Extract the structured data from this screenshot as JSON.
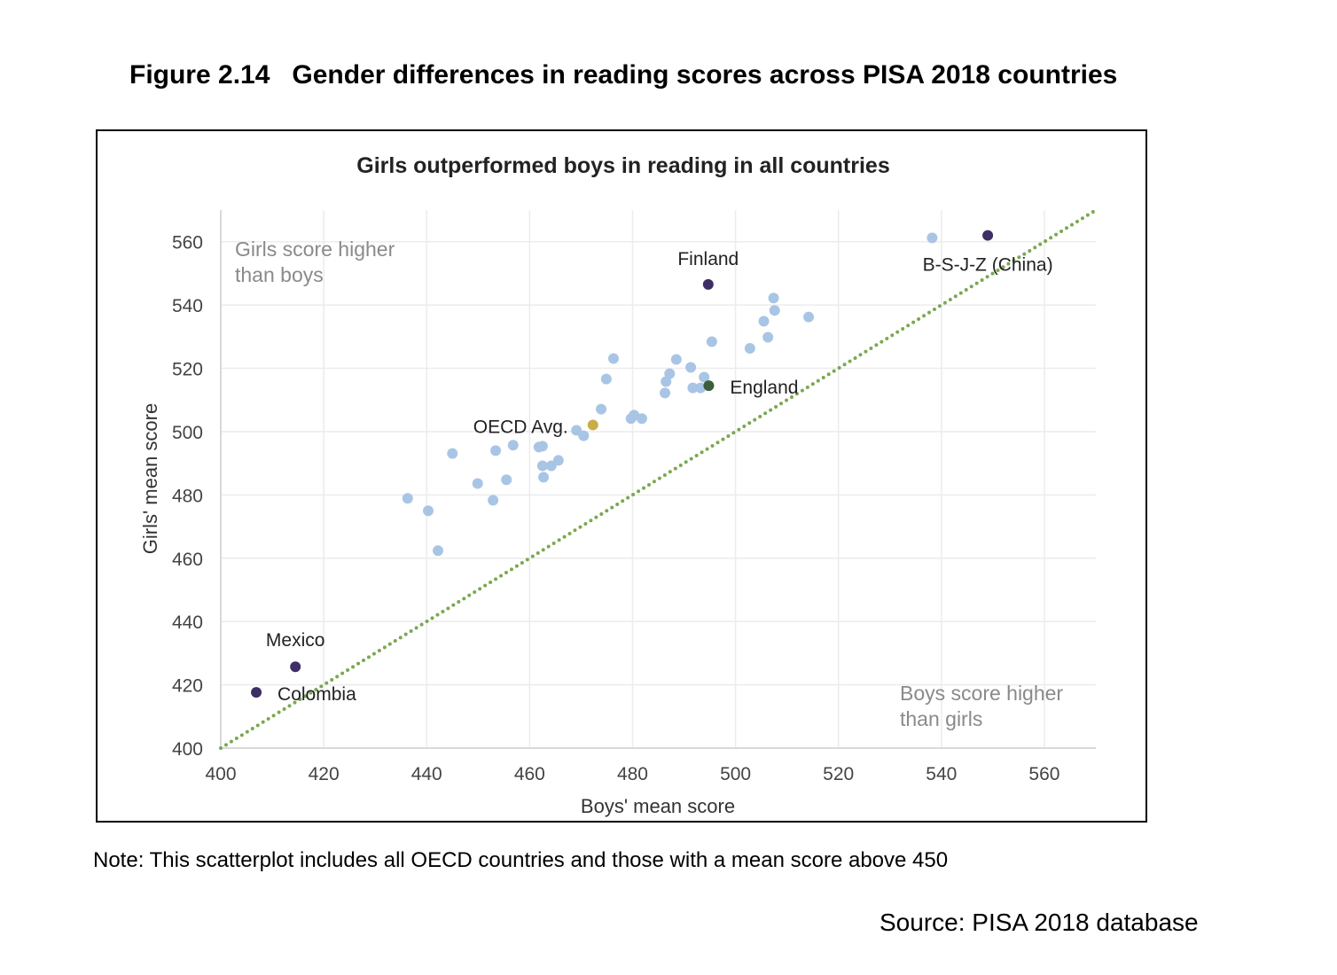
{
  "figure_title": "Figure 2.14   Gender differences in reading scores across PISA 2018 countries",
  "note": "Note: This scatterplot includes all OECD countries and those with a mean score above 450",
  "source": "Source: PISA 2018 database",
  "chart_data": {
    "type": "scatter",
    "title": "Girls outperformed boys in reading in all countries",
    "xlabel": "Boys' mean score",
    "ylabel": "Girls' mean score",
    "xlim": [
      400,
      570
    ],
    "ylim": [
      400,
      570
    ],
    "xticks": [
      400,
      420,
      440,
      460,
      480,
      500,
      520,
      540,
      560
    ],
    "yticks": [
      400,
      420,
      440,
      460,
      480,
      500,
      520,
      540,
      560
    ],
    "grid": true,
    "annotations": {
      "upper_left": [
        "Girls score higher",
        "than boys"
      ],
      "lower_right": [
        "Boys score higher",
        "than girls"
      ]
    },
    "reference_line": {
      "type": "y = x",
      "style": "dotted",
      "color": "#7aa850"
    },
    "colors": {
      "other": "#a9c5e5",
      "highlight": "#3d2f66",
      "england": "#3b5e3b",
      "oecd": "#c8ad48"
    },
    "points": [
      {
        "x": 436.3,
        "y": 478.9
      },
      {
        "x": 440.3,
        "y": 475.0
      },
      {
        "x": 442.2,
        "y": 462.4
      },
      {
        "x": 445.0,
        "y": 493.1
      },
      {
        "x": 449.9,
        "y": 483.6
      },
      {
        "x": 452.9,
        "y": 478.3
      },
      {
        "x": 453.4,
        "y": 494.0
      },
      {
        "x": 455.5,
        "y": 484.8
      },
      {
        "x": 456.8,
        "y": 495.7
      },
      {
        "x": 461.8,
        "y": 495.1
      },
      {
        "x": 462.5,
        "y": 495.4
      },
      {
        "x": 462.5,
        "y": 489.2
      },
      {
        "x": 462.7,
        "y": 485.6
      },
      {
        "x": 464.2,
        "y": 489.2
      },
      {
        "x": 465.6,
        "y": 490.9
      },
      {
        "x": 469.1,
        "y": 500.4
      },
      {
        "x": 470.5,
        "y": 498.7
      },
      {
        "x": 473.9,
        "y": 507.1
      },
      {
        "x": 474.9,
        "y": 516.6
      },
      {
        "x": 476.3,
        "y": 523.1
      },
      {
        "x": 479.7,
        "y": 504.1
      },
      {
        "x": 480.3,
        "y": 505.2
      },
      {
        "x": 481.8,
        "y": 504.1
      },
      {
        "x": 486.3,
        "y": 512.2
      },
      {
        "x": 486.5,
        "y": 515.8
      },
      {
        "x": 487.2,
        "y": 518.3
      },
      {
        "x": 488.5,
        "y": 522.8
      },
      {
        "x": 491.3,
        "y": 520.3
      },
      {
        "x": 491.7,
        "y": 513.8
      },
      {
        "x": 493.2,
        "y": 513.8
      },
      {
        "x": 493.9,
        "y": 517.2
      },
      {
        "x": 495.4,
        "y": 528.4
      },
      {
        "x": 502.8,
        "y": 526.3
      },
      {
        "x": 506.3,
        "y": 529.8
      },
      {
        "x": 505.5,
        "y": 534.9
      },
      {
        "x": 507.6,
        "y": 538.3
      },
      {
        "x": 507.4,
        "y": 542.2
      },
      {
        "x": 514.2,
        "y": 536.2
      },
      {
        "x": 538.2,
        "y": 561.2
      }
    ],
    "labeled_points": [
      {
        "label": "Finland",
        "x": 494.7,
        "y": 546.5,
        "color": "#3d2f66"
      },
      {
        "label": "B-S-J-Z (China)",
        "x": 549.0,
        "y": 562.0,
        "color": "#3d2f66"
      },
      {
        "label": "England",
        "x": 494.8,
        "y": 514.5,
        "color": "#3b5e3b"
      },
      {
        "label": "OECD Avg.",
        "x": 472.3,
        "y": 502.1,
        "color": "#c8ad48"
      },
      {
        "label": "Mexico",
        "x": 414.5,
        "y": 425.7,
        "color": "#3d2f66"
      },
      {
        "label": "Colombia",
        "x": 406.9,
        "y": 417.6,
        "color": "#3d2f66"
      }
    ]
  }
}
